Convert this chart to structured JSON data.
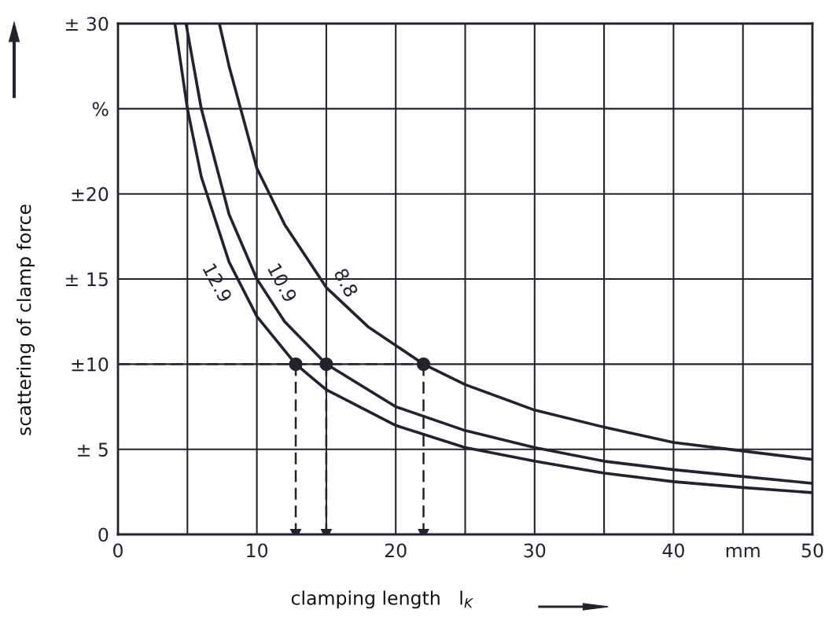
{
  "chart_data": {
    "type": "line",
    "xlabel": "clamping length   l$_{K}$",
    "ylabel": "scattering of clamp force",
    "xlim": [
      0,
      50
    ],
    "ylim": [
      0,
      30
    ],
    "xticks": [
      0,
      {
        "value": 5,
        "label": null
      },
      10,
      {
        "value": 15,
        "label": null
      },
      20,
      {
        "value": 25,
        "label": null
      },
      30,
      {
        "value": 35,
        "label": null
      },
      40,
      {
        "value": 45,
        "label": "mm"
      },
      50
    ],
    "yticks": [
      {
        "value": 0,
        "label": "0"
      },
      {
        "value": 5,
        "label": "± 5"
      },
      {
        "value": 10,
        "label": "±10"
      },
      {
        "value": 15,
        "label": "± 15"
      },
      {
        "value": 20,
        "label": "±20"
      },
      {
        "value": 25,
        "label": "%"
      },
      {
        "value": 30,
        "label": "± 30"
      }
    ],
    "grid": true,
    "line_style": "solid",
    "marker": "none",
    "series": [
      {
        "name": "8.8",
        "color": "#222230",
        "x": [
          7.3,
          8,
          10,
          12,
          15,
          18,
          22,
          25,
          30,
          35,
          40,
          45,
          50
        ],
        "values": [
          30,
          27.5,
          21.5,
          18.2,
          14.5,
          12.2,
          10,
          8.8,
          7.3,
          6.3,
          5.4,
          4.9,
          4.4
        ]
      },
      {
        "name": "10.9",
        "color": "#222230",
        "x": [
          4.9,
          6,
          8,
          10,
          12,
          15,
          20,
          25,
          30,
          35,
          40,
          45,
          50
        ],
        "values": [
          30,
          25,
          18.8,
          15,
          12.5,
          10,
          7.5,
          6.1,
          5.1,
          4.3,
          3.8,
          3.4,
          3.0
        ]
      },
      {
        "name": "12.9",
        "color": "#222230",
        "x": [
          4.1,
          5,
          6,
          8,
          10,
          12.8,
          15,
          20,
          25,
          30,
          35,
          40,
          45,
          50
        ],
        "values": [
          30,
          25,
          21,
          16,
          12.8,
          10,
          8.5,
          6.4,
          5.1,
          4.3,
          3.6,
          3.1,
          2.75,
          2.45
        ]
      },
      {
        "type": "line",
        "line_style": "dashed",
        "color": "#222230",
        "x": [
          0,
          22
        ],
        "values": [
          10,
          10
        ]
      },
      {
        "type": "line",
        "line_style": "dashed",
        "marker": "triangle",
        "color": "#222230",
        "x": [
          12.8,
          12.8
        ],
        "values": [
          10,
          0
        ]
      },
      {
        "type": "line",
        "line_style": "dashed",
        "marker": "triangle",
        "color": "#222230",
        "x": [
          15,
          15
        ],
        "values": [
          10,
          0
        ]
      },
      {
        "type": "line",
        "line_style": "dashed",
        "marker": "triangle",
        "color": "#222230",
        "x": [
          22,
          22
        ],
        "values": [
          10,
          0
        ]
      },
      {
        "type": "scatter",
        "marker": "circle",
        "color": "#222230",
        "x": [
          12.8,
          15,
          22
        ],
        "values": [
          10,
          10,
          10
        ]
      }
    ]
  }
}
